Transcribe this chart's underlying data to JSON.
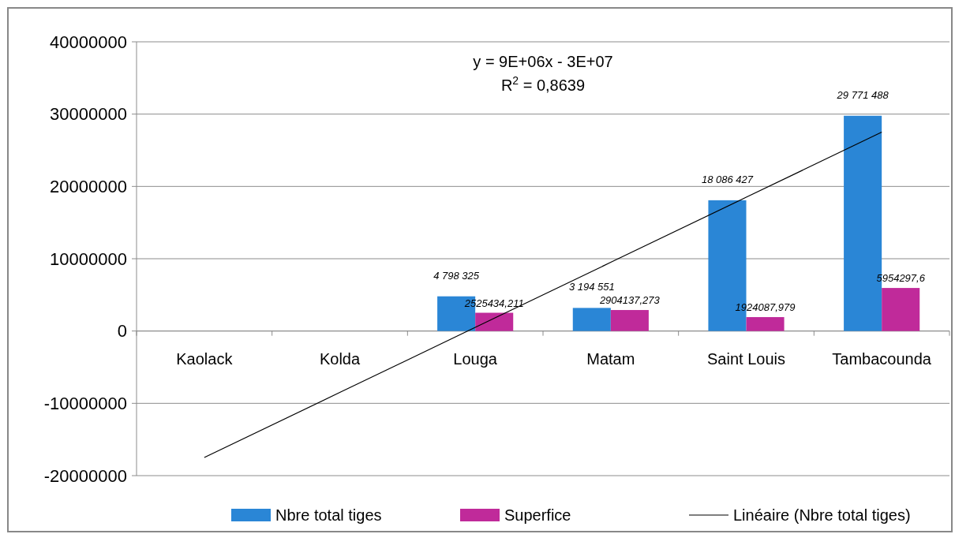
{
  "chart_data": {
    "type": "bar",
    "categories": [
      "Kaolack",
      "Kolda",
      "Louga",
      "Matam",
      "Saint Louis",
      "Tambacounda"
    ],
    "series": [
      {
        "name": "Nbre total tiges",
        "color": "#2a86d6",
        "values": [
          null,
          null,
          4798325,
          3194551,
          18086427,
          29771488
        ],
        "value_labels": [
          null,
          null,
          "4 798 325",
          "3 194 551",
          "18 086 427",
          "29 771 488"
        ]
      },
      {
        "name": "Superfice",
        "color": "#c02a9a",
        "values": [
          null,
          null,
          2525434.211,
          2904137.273,
          1924087.979,
          5954297.6
        ],
        "value_labels": [
          null,
          null,
          "2525434,211",
          "2904137,273",
          "1924087,979",
          "5954297,6"
        ]
      },
      {
        "name": "Linéaire (Nbre total tiges)",
        "type": "line",
        "color": "#000000",
        "values": [
          -17500000,
          -8500000,
          500000,
          9500000,
          18500000,
          27500000
        ]
      }
    ],
    "annotations": [
      "y = 9E+06x - 3E+07",
      "R$^{2}$ = 0,8639"
    ],
    "ylim": [
      -20000000,
      40000000
    ],
    "yticks": [
      -20000000,
      -10000000,
      0,
      10000000,
      20000000,
      30000000,
      40000000
    ],
    "grid": "y",
    "legend": "bottom"
  }
}
